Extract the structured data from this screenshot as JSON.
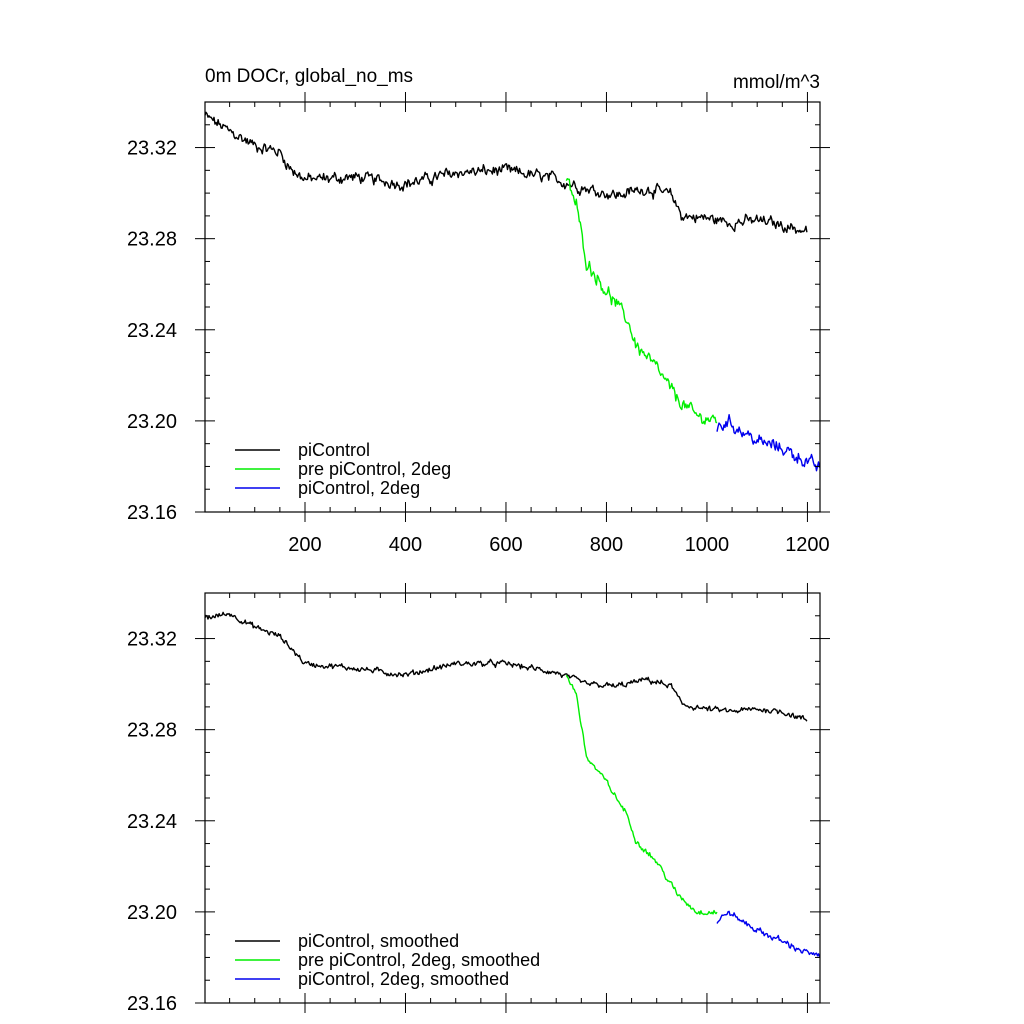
{
  "chart_data": [
    {
      "type": "line",
      "title_left": "0m DOCr, global_no_ms",
      "title_right": "mmol/m^3",
      "xlabel": "",
      "ylabel": "",
      "xlim": [
        1,
        1225
      ],
      "ylim": [
        23.16,
        23.34
      ],
      "x_ticks": [
        200,
        400,
        600,
        800,
        1000,
        1200
      ],
      "x_tick_labels": [
        "200",
        "400",
        "600",
        "800",
        "1000",
        "1200"
      ],
      "y_ticks": [
        23.16,
        23.2,
        23.24,
        23.28,
        23.32
      ],
      "y_tick_labels": [
        "23.16",
        "23.20",
        "23.24",
        "23.28",
        "23.32"
      ],
      "legend_position": "bottom-left",
      "series": [
        {
          "name": "piControl",
          "color": "#000000",
          "noise": 0.004,
          "points": [
            [
              1,
              23.334
            ],
            [
              50,
              23.327
            ],
            [
              100,
              23.321
            ],
            [
              150,
              23.318
            ],
            [
              170,
              23.311
            ],
            [
              200,
              23.306
            ],
            [
              300,
              23.307
            ],
            [
              400,
              23.304
            ],
            [
              500,
              23.309
            ],
            [
              600,
              23.31
            ],
            [
              700,
              23.306
            ],
            [
              760,
              23.302
            ],
            [
              820,
              23.299
            ],
            [
              880,
              23.302
            ],
            [
              930,
              23.299
            ],
            [
              950,
              23.29
            ],
            [
              1000,
              23.289
            ],
            [
              1050,
              23.287
            ],
            [
              1100,
              23.288
            ],
            [
              1150,
              23.286
            ],
            [
              1200,
              23.283
            ]
          ]
        },
        {
          "name": "pre piControl, 2deg",
          "color": "#00ee00",
          "noise": 0.0045,
          "points": [
            [
              720,
              23.306
            ],
            [
              740,
              23.295
            ],
            [
              760,
              23.27
            ],
            [
              800,
              23.257
            ],
            [
              840,
              23.245
            ],
            [
              860,
              23.233
            ],
            [
              900,
              23.223
            ],
            [
              940,
              23.21
            ],
            [
              980,
              23.202
            ],
            [
              1020,
              23.2
            ]
          ]
        },
        {
          "name": "piControl, 2deg",
          "color": "#0000ee",
          "noise": 0.0045,
          "points": [
            [
              1020,
              23.196
            ],
            [
              1040,
              23.2
            ],
            [
              1100,
              23.191
            ],
            [
              1150,
              23.188
            ],
            [
              1200,
              23.182
            ],
            [
              1225,
              23.179
            ]
          ]
        }
      ]
    },
    {
      "type": "line",
      "title_left": "",
      "title_right": "",
      "xlabel": "",
      "ylabel": "",
      "xlim": [
        1,
        1225
      ],
      "ylim": [
        23.16,
        23.34
      ],
      "x_ticks": [
        200,
        400,
        600,
        800,
        1000,
        1200
      ],
      "x_tick_labels": [],
      "y_ticks": [
        23.16,
        23.2,
        23.24,
        23.28,
        23.32
      ],
      "y_tick_labels": [
        "23.16",
        "23.20",
        "23.24",
        "23.28",
        "23.32"
      ],
      "legend_position": "bottom-left",
      "series": [
        {
          "name": "piControl, smoothed",
          "color": "#000000",
          "noise": 0.002,
          "points": [
            [
              1,
              23.329
            ],
            [
              50,
              23.331
            ],
            [
              100,
              23.325
            ],
            [
              150,
              23.321
            ],
            [
              180,
              23.314
            ],
            [
              200,
              23.309
            ],
            [
              300,
              23.307
            ],
            [
              400,
              23.304
            ],
            [
              500,
              23.309
            ],
            [
              600,
              23.309
            ],
            [
              700,
              23.305
            ],
            [
              760,
              23.3
            ],
            [
              820,
              23.299
            ],
            [
              880,
              23.302
            ],
            [
              930,
              23.299
            ],
            [
              950,
              23.291
            ],
            [
              1000,
              23.289
            ],
            [
              1050,
              23.288
            ],
            [
              1100,
              23.289
            ],
            [
              1150,
              23.288
            ],
            [
              1200,
              23.284
            ]
          ]
        },
        {
          "name": "pre piControl, 2deg, smoothed",
          "color": "#00ee00",
          "noise": 0.002,
          "points": [
            [
              720,
              23.304
            ],
            [
              740,
              23.296
            ],
            [
              760,
              23.268
            ],
            [
              800,
              23.257
            ],
            [
              840,
              23.243
            ],
            [
              860,
              23.231
            ],
            [
              900,
              23.222
            ],
            [
              940,
              23.208
            ],
            [
              980,
              23.2
            ],
            [
              1020,
              23.2
            ]
          ]
        },
        {
          "name": "piControl, 2deg, smoothed",
          "color": "#0000ee",
          "noise": 0.0022,
          "points": [
            [
              1020,
              23.195
            ],
            [
              1040,
              23.2
            ],
            [
              1100,
              23.192
            ],
            [
              1150,
              23.187
            ],
            [
              1200,
              23.182
            ],
            [
              1225,
              23.18
            ]
          ]
        }
      ]
    }
  ]
}
